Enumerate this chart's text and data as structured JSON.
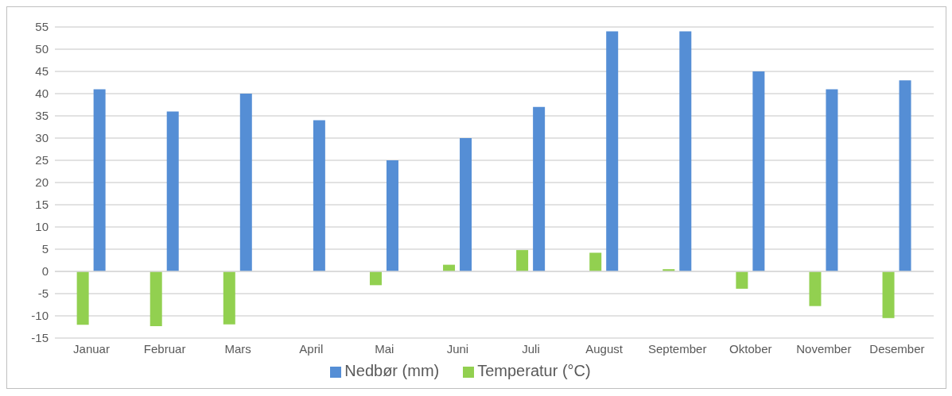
{
  "chart_data": {
    "type": "bar",
    "categories": [
      "Januar",
      "Februar",
      "Mars",
      "April",
      "Mai",
      "Juni",
      "Juli",
      "August",
      "September",
      "Oktober",
      "November",
      "Desember"
    ],
    "series": [
      {
        "name": "Temperatur (°C)",
        "color": "#92d050",
        "values": [
          -12,
          -12.3,
          -11.9,
          0,
          -3.1,
          1.5,
          4.8,
          4.2,
          0.5,
          -3.9,
          -7.8,
          -10.5
        ]
      },
      {
        "name": "Nedbør (mm)",
        "color": "#558ed5",
        "values": [
          41,
          36,
          40,
          34,
          25,
          30,
          37,
          54,
          54,
          45,
          41,
          43
        ]
      }
    ],
    "ylim": [
      -15,
      55
    ],
    "yticks": [
      -15,
      -10,
      -5,
      0,
      5,
      10,
      15,
      20,
      25,
      30,
      35,
      40,
      45,
      50,
      55
    ],
    "grid": "y",
    "legend": "bottom"
  }
}
